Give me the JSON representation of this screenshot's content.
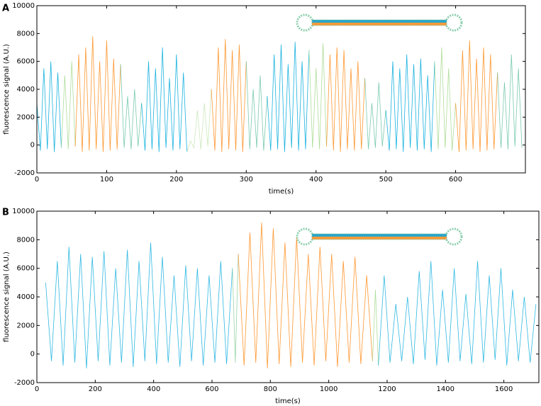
{
  "chart_data": [
    {
      "type": "line",
      "panel": "A",
      "xlabel": "time(s)",
      "ylabel": "fluorescence signal (A.U.)",
      "xlim": [
        0,
        700
      ],
      "xticks": [
        0,
        100,
        200,
        300,
        400,
        500,
        600
      ],
      "ylim": [
        -2000,
        10000
      ],
      "yticks": [
        -2000,
        0,
        2000,
        4000,
        6000,
        8000,
        10000
      ],
      "series": [
        {
          "color": "#00aadd",
          "x": [
            0,
            5,
            10,
            15,
            20,
            25,
            30,
            35
          ],
          "values": [
            3000,
            -400,
            5500,
            -300,
            6000,
            -500,
            5200,
            -200
          ]
        },
        {
          "color": "#a6d98f",
          "x": [
            35,
            40,
            45,
            50,
            55
          ],
          "values": [
            -200,
            5000,
            -300,
            6000,
            -100
          ]
        },
        {
          "color": "#ff8c1a",
          "x": [
            55,
            60,
            65,
            70,
            75,
            80,
            85,
            90,
            95,
            100,
            105,
            110,
            115,
            120
          ],
          "values": [
            -100,
            6500,
            -500,
            7000,
            -400,
            7800,
            -300,
            6000,
            -500,
            7500,
            -400,
            6200,
            -300,
            5800
          ]
        },
        {
          "color": "#6cc4a6",
          "x": [
            120,
            125,
            130,
            135,
            140,
            145,
            150
          ],
          "values": [
            5800,
            -200,
            3500,
            -300,
            4000,
            -100,
            3000
          ]
        },
        {
          "color": "#00aadd",
          "x": [
            150,
            155,
            160,
            165,
            170,
            175,
            180,
            185,
            190,
            195,
            200,
            205,
            210,
            215
          ],
          "values": [
            3000,
            -400,
            6000,
            -300,
            5500,
            -500,
            7000,
            -200,
            4800,
            -400,
            6500,
            -300,
            5200,
            -500
          ]
        },
        {
          "color": "#c6e6b4",
          "x": [
            215,
            220,
            225,
            230,
            235,
            240,
            245,
            250
          ],
          "values": [
            -500,
            300,
            -200,
            2500,
            -300,
            3000,
            -100,
            4000
          ]
        },
        {
          "color": "#ff8c1a",
          "x": [
            250,
            255,
            260,
            265,
            270,
            275,
            280,
            285,
            290,
            295,
            300
          ],
          "values": [
            4000,
            -400,
            7000,
            -500,
            7600,
            -300,
            6800,
            -400,
            7200,
            -500,
            6000
          ]
        },
        {
          "color": "#6cc4a6",
          "x": [
            300,
            305,
            310,
            315,
            320,
            325,
            330
          ],
          "values": [
            6000,
            -300,
            4000,
            -200,
            5000,
            -400,
            3500
          ]
        },
        {
          "color": "#00aadd",
          "x": [
            330,
            335,
            340,
            345,
            350,
            355,
            360,
            365,
            370,
            375,
            380,
            385,
            390
          ],
          "values": [
            3500,
            -400,
            6500,
            -300,
            7200,
            -500,
            5800,
            -200,
            7400,
            -400,
            6000,
            -300,
            6800
          ]
        },
        {
          "color": "#a6d98f",
          "x": [
            390,
            395,
            400,
            405,
            410,
            415
          ],
          "values": [
            6800,
            -200,
            5500,
            -300,
            7300,
            -100
          ]
        },
        {
          "color": "#ff8c1a",
          "x": [
            415,
            420,
            425,
            430,
            435,
            440,
            445,
            450,
            455,
            460,
            465,
            470
          ],
          "values": [
            -100,
            6500,
            -400,
            7000,
            -500,
            6800,
            -300,
            5500,
            -400,
            6000,
            -300,
            4800
          ]
        },
        {
          "color": "#6cc4a6",
          "x": [
            470,
            475,
            480,
            485,
            490,
            495,
            500
          ],
          "values": [
            4800,
            -300,
            3000,
            -200,
            4500,
            -100,
            2500
          ]
        },
        {
          "color": "#00aadd",
          "x": [
            500,
            505,
            510,
            515,
            520,
            525,
            530,
            535,
            540,
            545,
            550,
            555,
            560,
            565,
            570
          ],
          "values": [
            2500,
            -400,
            6000,
            -300,
            5500,
            -500,
            6500,
            -200,
            5800,
            -400,
            6200,
            -300,
            5000,
            -500,
            6000
          ]
        },
        {
          "color": "#a6d98f",
          "x": [
            570,
            575,
            580,
            585,
            590,
            595,
            600
          ],
          "values": [
            6000,
            -300,
            7000,
            -200,
            5500,
            -400,
            3000
          ]
        },
        {
          "color": "#ff8c1a",
          "x": [
            600,
            605,
            610,
            615,
            620,
            625,
            630,
            635,
            640,
            645,
            650,
            655,
            660
          ],
          "values": [
            3000,
            -500,
            6800,
            -400,
            7500,
            -300,
            6200,
            -500,
            7000,
            -400,
            6500,
            -300,
            5200
          ]
        },
        {
          "color": "#6cc4a6",
          "x": [
            660,
            665,
            670,
            675,
            680,
            685,
            690,
            695
          ],
          "values": [
            5200,
            -200,
            4500,
            -300,
            6500,
            -100,
            5500,
            -200
          ]
        }
      ]
    },
    {
      "type": "line",
      "panel": "B",
      "xlabel": "time(s)",
      "ylabel": "fluorescence signal (A.U.)",
      "xlim": [
        0,
        1720
      ],
      "xticks": [
        0,
        200,
        400,
        600,
        800,
        1000,
        1200,
        1400,
        1600
      ],
      "ylim": [
        -2000,
        10000
      ],
      "yticks": [
        -2000,
        0,
        2000,
        4000,
        6000,
        8000,
        10000
      ],
      "series": [
        {
          "color": "#1ab0e0",
          "x": [
            30,
            50,
            70,
            90,
            110,
            130,
            150,
            170,
            190,
            210,
            230,
            250,
            270,
            290,
            310,
            330,
            350,
            370,
            390,
            410,
            430,
            450,
            470,
            490,
            510,
            530,
            550,
            570,
            590,
            610,
            630,
            650,
            670
          ],
          "values": [
            5000,
            -500,
            6500,
            -800,
            7500,
            -600,
            7000,
            -1000,
            6800,
            -500,
            7200,
            -800,
            6000,
            -600,
            7300,
            -900,
            6500,
            -500,
            7800,
            -700,
            6800,
            -600,
            5500,
            -900,
            6200,
            -500,
            6000,
            -800,
            5500,
            -600,
            6500,
            -700,
            6000
          ]
        },
        {
          "color": "#8fcfa0",
          "x": [
            670,
            680,
            690
          ],
          "values": [
            6000,
            -600,
            7000
          ]
        },
        {
          "color": "#ff8c1a",
          "x": [
            690,
            710,
            730,
            750,
            770,
            790,
            810,
            830,
            850,
            870,
            890,
            910,
            930,
            950,
            970,
            990,
            1010,
            1030,
            1050,
            1070,
            1090,
            1110,
            1130,
            1150
          ],
          "values": [
            7000,
            -800,
            8500,
            -600,
            9200,
            -1000,
            8800,
            -700,
            7800,
            -900,
            8200,
            -600,
            7000,
            -800,
            7500,
            -500,
            7000,
            -900,
            6500,
            -600,
            6800,
            -700,
            5500,
            -500
          ]
        },
        {
          "color": "#a6d98f",
          "x": [
            1150,
            1160,
            1170
          ],
          "values": [
            -500,
            4500,
            -800
          ]
        },
        {
          "color": "#1ab0e0",
          "x": [
            1170,
            1190,
            1210,
            1230,
            1250,
            1270,
            1290,
            1310,
            1330,
            1350,
            1370,
            1390,
            1410,
            1430,
            1450,
            1470,
            1490,
            1510,
            1530,
            1550,
            1570,
            1590,
            1610,
            1630,
            1650,
            1670,
            1690,
            1710
          ],
          "values": [
            -800,
            5500,
            -600,
            3500,
            -500,
            4000,
            -700,
            5800,
            -400,
            6500,
            -800,
            4500,
            -600,
            6000,
            -500,
            4200,
            -700,
            6500,
            -600,
            5500,
            -400,
            6000,
            -800,
            4500,
            -500,
            4000,
            -600,
            3500
          ]
        }
      ]
    }
  ]
}
